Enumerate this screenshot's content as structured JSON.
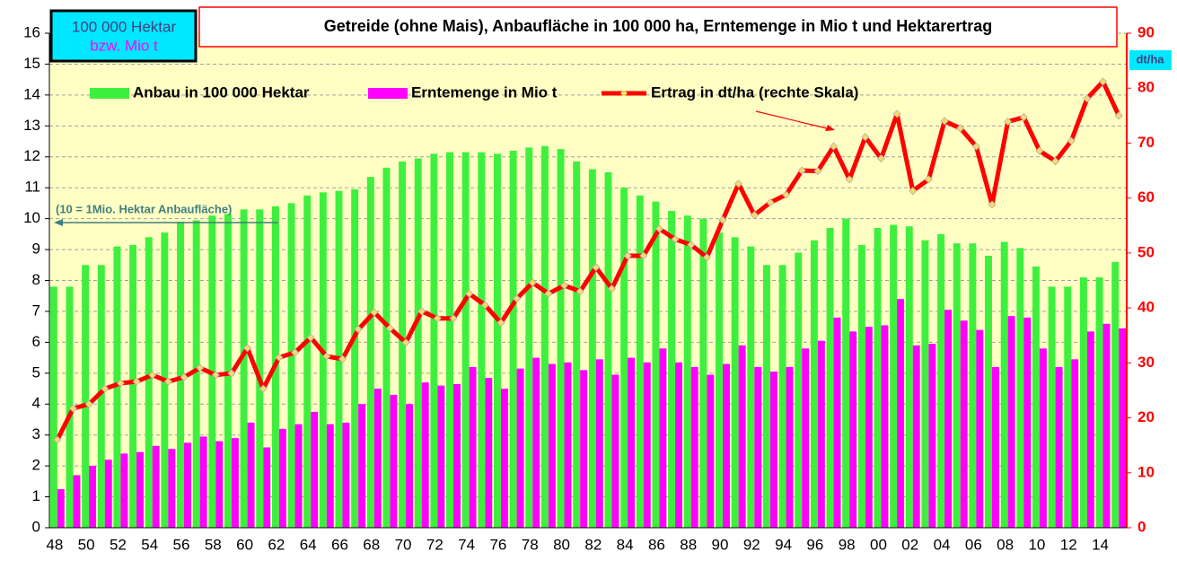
{
  "chart_data": {
    "type": "bar-line",
    "title": "Getreide (ohne Mais), Anbaufläche in 100 000 ha, Erntemenge in Mio t und Hektarertrag",
    "ylabel": "100 000 Hektar",
    "ylabel_sub": "bzw. Mio t",
    "y2label": "dt/ha",
    "annotation": "(10 = 1Mio. Hektar Anbaufläche)",
    "categories": [
      "48",
      null,
      "50",
      null,
      "52",
      null,
      "54",
      null,
      "56",
      null,
      "58",
      null,
      "60",
      null,
      "62",
      null,
      "64",
      null,
      "66",
      null,
      "68",
      null,
      "70",
      null,
      "72",
      null,
      "74",
      null,
      "76",
      null,
      "78",
      null,
      "80",
      null,
      "82",
      null,
      "84",
      null,
      "86",
      null,
      "88",
      null,
      "90",
      null,
      "92",
      null,
      "94",
      null,
      "96",
      null,
      "98",
      null,
      "00",
      null,
      "02",
      null,
      "04",
      null,
      "06",
      null,
      "08",
      null,
      "10",
      null,
      "12",
      null,
      "14",
      null
    ],
    "series": [
      {
        "name": "Anbau in 100 000 Hektar",
        "color": "#3ef03e",
        "kind": "bar",
        "values": [
          7.8,
          7.8,
          8.5,
          8.5,
          9.1,
          9.15,
          9.4,
          9.55,
          9.9,
          9.95,
          10.1,
          10.15,
          10.3,
          10.3,
          10.4,
          10.5,
          10.75,
          10.85,
          10.9,
          10.95,
          11.35,
          11.65,
          11.85,
          11.95,
          12.1,
          12.15,
          12.15,
          12.15,
          12.1,
          12.2,
          12.3,
          12.35,
          12.25,
          11.85,
          11.6,
          11.5,
          11.0,
          10.75,
          10.55,
          10.25,
          10.1,
          10.0,
          9.55,
          9.4,
          9.1,
          8.5,
          8.5,
          8.9,
          9.3,
          9.7,
          10.0,
          9.15,
          9.7,
          9.8,
          9.75,
          9.3,
          9.5,
          9.2,
          9.2,
          8.8,
          9.25,
          9.05,
          8.45,
          7.8,
          7.8,
          8.1,
          8.1,
          8.6
        ]
      },
      {
        "name": "Erntemenge in Mio t",
        "color": "#ff00ff",
        "kind": "bar",
        "values": [
          1.25,
          1.7,
          2.0,
          2.2,
          2.4,
          2.45,
          2.65,
          2.55,
          2.75,
          2.95,
          2.8,
          2.9,
          3.4,
          2.6,
          3.2,
          3.35,
          3.75,
          3.35,
          3.4,
          4.0,
          4.5,
          4.3,
          4.0,
          4.7,
          4.6,
          4.65,
          5.2,
          4.85,
          4.5,
          5.15,
          5.5,
          5.3,
          5.35,
          5.1,
          5.45,
          4.95,
          5.5,
          5.35,
          5.8,
          5.35,
          5.2,
          4.95,
          5.3,
          5.9,
          5.2,
          5.05,
          5.2,
          5.8,
          6.05,
          6.8,
          6.35,
          6.5,
          6.55,
          7.4,
          5.9,
          5.95,
          7.05,
          6.7,
          6.4,
          5.2,
          6.85,
          6.8,
          5.8,
          5.2,
          5.45,
          6.35,
          6.6,
          6.45
        ]
      },
      {
        "name": "Ertrag in dt/ha (rechte Skala)",
        "color": "#ff0000",
        "kind": "line",
        "axis": "y2",
        "values": [
          16,
          21.7,
          22.5,
          25.3,
          26.3,
          26.6,
          27.8,
          26.6,
          27.4,
          29.1,
          27.8,
          28.1,
          32.7,
          25.3,
          31,
          31.9,
          34.6,
          31.2,
          30.7,
          36.1,
          39.2,
          36.3,
          33.7,
          39.4,
          38.1,
          38.1,
          42.6,
          40.5,
          37.3,
          41.7,
          44.6,
          42.6,
          44.1,
          43,
          47.4,
          43.5,
          49.5,
          49.5,
          54.4,
          52.5,
          51.5,
          49.2,
          56,
          62.6,
          56.9,
          59.2,
          60.6,
          65,
          64.9,
          69.4,
          63.4,
          71.1,
          67.2,
          75.3,
          61.3,
          63.4,
          74,
          72.7,
          69.4,
          58.8,
          73.9,
          74.7,
          68.6,
          66.7,
          70.4,
          78.1,
          81.2,
          75
        ]
      }
    ],
    "ylim": [
      0,
      16
    ],
    "yticks": [
      0,
      1,
      2,
      3,
      4,
      5,
      6,
      7,
      8,
      9,
      10,
      11,
      12,
      13,
      14,
      15,
      16
    ],
    "y2lim": [
      0,
      90
    ],
    "y2ticks": [
      0,
      10,
      20,
      30,
      40,
      50,
      60,
      70,
      80,
      90
    ],
    "grid": true,
    "legend_position": "top"
  }
}
